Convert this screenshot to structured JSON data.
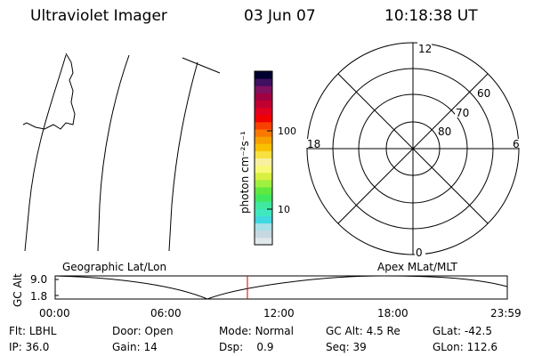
{
  "header": {
    "instrument": "Ultraviolet Imager",
    "date": "03 Jun 07",
    "time": "10:18:38 UT"
  },
  "colorbar": {
    "label": "photon cm⁻²s⁻¹",
    "ticks": [
      {
        "value": 100,
        "label": "100"
      },
      {
        "value": 10,
        "label": "10"
      }
    ],
    "colors": [
      "#e0e8ec",
      "#c8d8e0",
      "#a8e0e8",
      "#40d8e0",
      "#40e8c0",
      "#40e8a0",
      "#40e860",
      "#60e840",
      "#a0f040",
      "#d8f040",
      "#f8f878",
      "#f8f0a0",
      "#f8e040",
      "#f8c000",
      "#f8a000",
      "#f87800",
      "#f84000",
      "#f00000",
      "#e00020",
      "#c00030",
      "#a00040",
      "#801060",
      "#401060",
      "#000030"
    ]
  },
  "polar": {
    "mlt_labels": {
      "top": "12",
      "bottom": "0",
      "left": "18",
      "right": "6"
    },
    "mlat_labels": [
      "60",
      "70",
      "80"
    ]
  },
  "timeline": {
    "y_label": "GC Alt",
    "y_ticks": [
      "9.0",
      "1.8"
    ],
    "left_title": "Geographic Lat/Lon",
    "right_title": "Apex MLat/MLT",
    "x_ticks": [
      "00:00",
      "06:00",
      "12:00",
      "18:00",
      "23:59"
    ]
  },
  "status": {
    "col1": [
      {
        "key": "Flt:",
        "value": "LBHL"
      },
      {
        "key": "IP:",
        "value": "36.0"
      }
    ],
    "col2": [
      {
        "key": "Door:",
        "value": "Open"
      },
      {
        "key": "Gain:",
        "value": "14"
      }
    ],
    "col3": [
      {
        "key": "Mode:",
        "value": "Normal"
      },
      {
        "key": "Dsp:",
        "value": "0.9"
      }
    ],
    "col4": [
      {
        "key": "GC Alt:",
        "value": "4.5 Re"
      },
      {
        "key": "Seq:",
        "value": "39"
      }
    ],
    "col5": [
      {
        "key": "GLat:",
        "value": "-42.5"
      },
      {
        "key": "GLon:",
        "value": "112.6"
      }
    ]
  }
}
